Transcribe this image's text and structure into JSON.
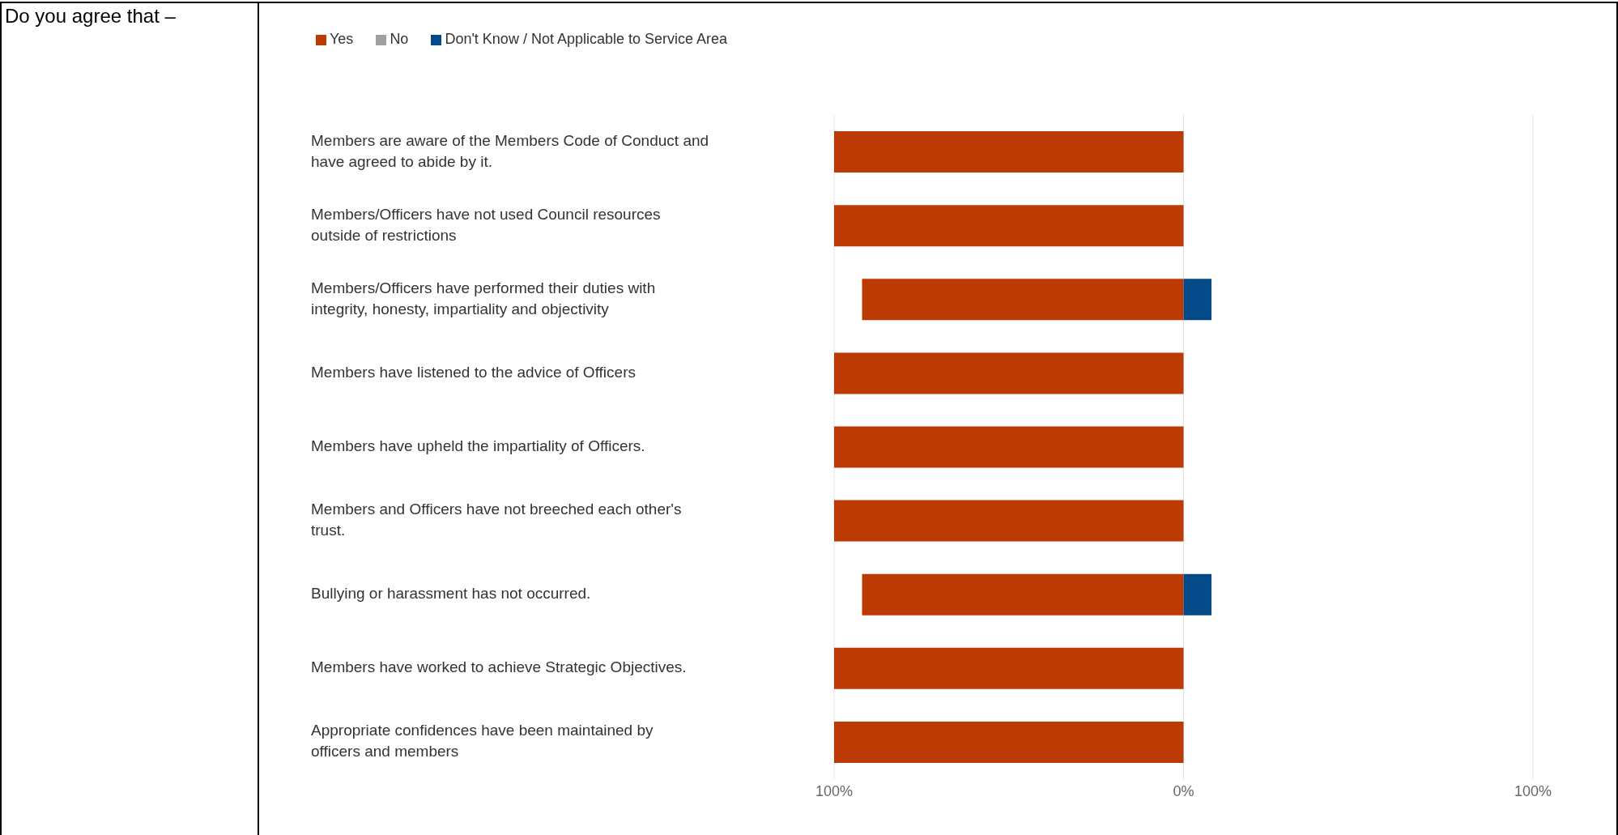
{
  "chart_data": {
    "type": "bar",
    "orientation": "horizontal",
    "stacked": true,
    "annotations": [
      "Do you agree that –"
    ],
    "categories": [
      "Members are aware of the Members Code of Conduct and have agreed to abide by it.",
      "Members/Officers have not used Council resources outside of restrictions",
      "Members/Officers have performed their duties with integrity, honesty, impartiality and objectivity",
      "Members have listened to the advice of Officers",
      "Members have upheld the impartiality of Officers.",
      "Members and Officers have not breeched each other's trust.",
      "Bullying or harassment has not occurred.",
      "Members have worked to achieve Strategic Objectives.",
      "Appropriate confidences have been maintained by officers and members"
    ],
    "series": [
      {
        "name": "Yes",
        "color": "#bc3a04",
        "values": [
          -100,
          -100,
          -92,
          -100,
          -100,
          -100,
          -92,
          -100,
          -100
        ]
      },
      {
        "name": "No",
        "color": "#a0a0a0",
        "values": [
          0,
          0,
          0,
          0,
          0,
          0,
          0,
          0,
          0
        ]
      },
      {
        "name": "Don't Know / Not Applicable to Service Area",
        "color": "#044a88",
        "values": [
          0,
          0,
          8,
          0,
          0,
          0,
          8,
          0,
          0
        ]
      }
    ],
    "xlim": [
      -100,
      100
    ],
    "xticks": [
      {
        "value": -100,
        "label": "100%"
      },
      {
        "value": 0,
        "label": "0%"
      },
      {
        "value": 100,
        "label": "100%"
      }
    ],
    "grid": "x",
    "legend": "top left"
  }
}
